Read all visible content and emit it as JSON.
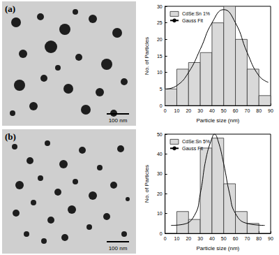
{
  "images": [
    {
      "label": "(a)",
      "scale_bar": "100 nm"
    },
    {
      "label": "(b)",
      "scale_bar": "100 nm"
    }
  ],
  "chart_data": [
    {
      "type": "histogram",
      "x_label": "Particle size (nm)",
      "y_label": "No. of Particles",
      "xlim": [
        0,
        90
      ],
      "xticks": [
        0,
        10,
        20,
        30,
        40,
        50,
        60,
        70,
        80,
        90
      ],
      "ylim": [
        0,
        30
      ],
      "yticks": [
        0,
        5,
        10,
        15,
        20,
        25,
        30
      ],
      "grid": false,
      "legend": "upper left",
      "series": [
        {
          "name": "CdSe:Sn 1%",
          "type": "bar",
          "color": "#d9d9d9",
          "bins": [
            0,
            10,
            20,
            30,
            40,
            50,
            60,
            70,
            80,
            90
          ],
          "values": [
            5,
            11,
            13,
            16,
            25,
            30,
            20,
            11,
            3
          ]
        },
        {
          "name": "Gauss Fit",
          "type": "line",
          "color": "#000000",
          "x": [
            1,
            10,
            20,
            30,
            40,
            50,
            60,
            70,
            80,
            88
          ],
          "values": [
            5,
            6,
            10,
            17,
            25,
            29,
            25,
            16,
            9,
            7
          ]
        }
      ]
    },
    {
      "type": "histogram",
      "x_label": "Particle size (nm)",
      "y_label": "No. of Particles",
      "xlim": [
        0,
        90
      ],
      "xticks": [
        0,
        10,
        20,
        30,
        40,
        50,
        60,
        70,
        80,
        90
      ],
      "ylim": [
        0,
        50
      ],
      "yticks": [
        0,
        10,
        20,
        30,
        40,
        50
      ],
      "grid": false,
      "legend": "upper left",
      "series": [
        {
          "name": "CdSe:Sn 5%",
          "type": "bar",
          "color": "#d9d9d9",
          "bins": [
            10,
            20,
            30,
            40,
            50,
            60,
            70,
            80
          ],
          "values": [
            11,
            7,
            43,
            48,
            25,
            11,
            5
          ]
        },
        {
          "name": "Gauss Fit",
          "type": "line",
          "color": "#000000",
          "x": [
            5,
            15,
            25,
            30,
            35,
            40,
            42,
            45,
            50,
            55,
            60,
            70,
            85
          ],
          "values": [
            4,
            4.5,
            9,
            20,
            38,
            48,
            50,
            47,
            35,
            20,
            10,
            5,
            4
          ]
        }
      ]
    }
  ]
}
